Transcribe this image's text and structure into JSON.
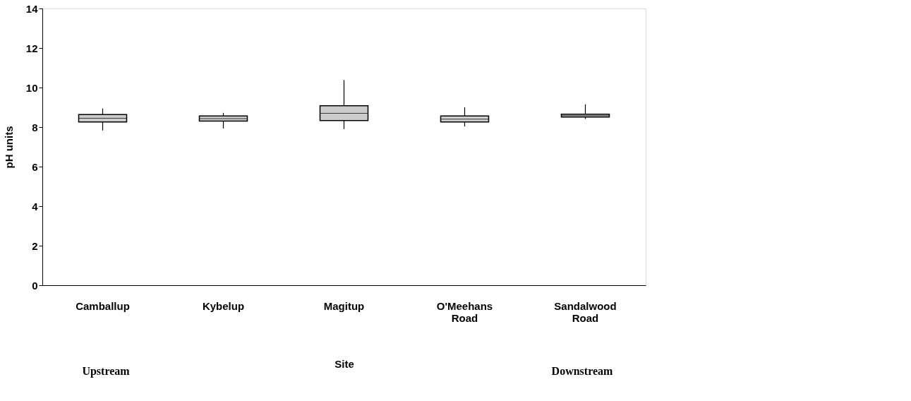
{
  "chart_data": {
    "type": "box",
    "ylabel": "pH units",
    "xlabel": "Site",
    "categories": [
      "Camballup",
      "Kybelup",
      "Magitup",
      "O'Meehans Road",
      "Sandalwood Road"
    ],
    "boxes": [
      {
        "low": 7.83,
        "q1": 8.26,
        "median": 8.45,
        "q3": 8.63,
        "high": 8.94
      },
      {
        "low": 7.93,
        "q1": 8.3,
        "median": 8.43,
        "q3": 8.56,
        "high": 8.72
      },
      {
        "low": 7.9,
        "q1": 8.33,
        "median": 8.7,
        "q3": 9.08,
        "high": 10.38
      },
      {
        "low": 8.03,
        "q1": 8.26,
        "median": 8.4,
        "q3": 8.56,
        "high": 9.0
      },
      {
        "low": 8.41,
        "q1": 8.51,
        "median": 8.58,
        "q3": 8.65,
        "high": 9.15
      }
    ],
    "color": "#cccccc",
    "ylim": [
      0,
      14
    ],
    "yticks": [
      0,
      2,
      4,
      6,
      8,
      10,
      12,
      14
    ],
    "grid": false,
    "annotations": [
      "Upstream",
      "Downstream"
    ]
  }
}
